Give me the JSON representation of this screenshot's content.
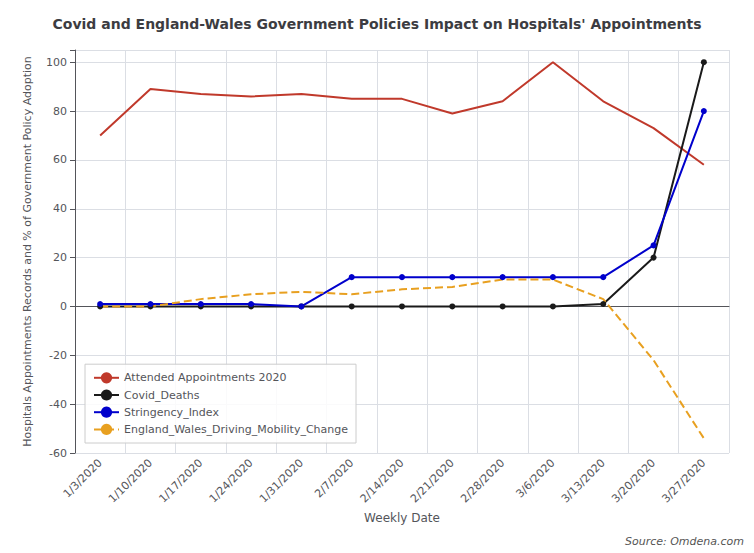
{
  "chart_data": {
    "type": "line",
    "title": "Covid and England-Wales Government Policies Impact on Hospitals' Appointments",
    "x_label": "Weekly Date",
    "y_label": "Hospitals Appointments Records and % of Government Policy Adoption",
    "annotation": "Source: Omdena.com",
    "categories": [
      "1/3/2020",
      "1/10/2020",
      "1/17/2020",
      "1/24/2020",
      "1/31/2020",
      "2/7/2020",
      "2/14/2020",
      "2/21/2020",
      "2/28/2020",
      "3/6/2020",
      "3/13/2020",
      "3/20/2020",
      "3/27/2020"
    ],
    "series": [
      {
        "name": "Attended Appointments 2020",
        "color": "#c0392b",
        "marker": "none",
        "line_style": "solid",
        "values": [
          70,
          89,
          87,
          86,
          87,
          85,
          85,
          79,
          84,
          100,
          84,
          73,
          58
        ]
      },
      {
        "name": "Covid_Deaths",
        "color": "#1a1a1a",
        "marker": "circle",
        "line_style": "solid",
        "values": [
          0,
          0,
          0,
          0,
          0,
          0,
          0,
          0,
          0,
          0,
          1,
          20,
          100
        ]
      },
      {
        "name": "Stringency_Index",
        "color": "#0000cc",
        "marker": "circle",
        "line_style": "solid",
        "values": [
          1,
          1,
          1,
          1,
          0,
          12,
          12,
          12,
          12,
          12,
          12,
          25,
          80
        ]
      },
      {
        "name": "England_Wales_Driving_Mobility_Change",
        "color": "#e8a020",
        "marker": "none",
        "line_style": "dashed",
        "values": [
          0,
          0,
          3,
          5,
          6,
          5,
          7,
          8,
          11,
          11,
          3,
          -22,
          -54
        ]
      }
    ],
    "ylim": [
      -60,
      105
    ],
    "yticks": [
      -60,
      -40,
      -20,
      0,
      20,
      40,
      60,
      80,
      100
    ],
    "grid": true,
    "legend": "lower left"
  }
}
